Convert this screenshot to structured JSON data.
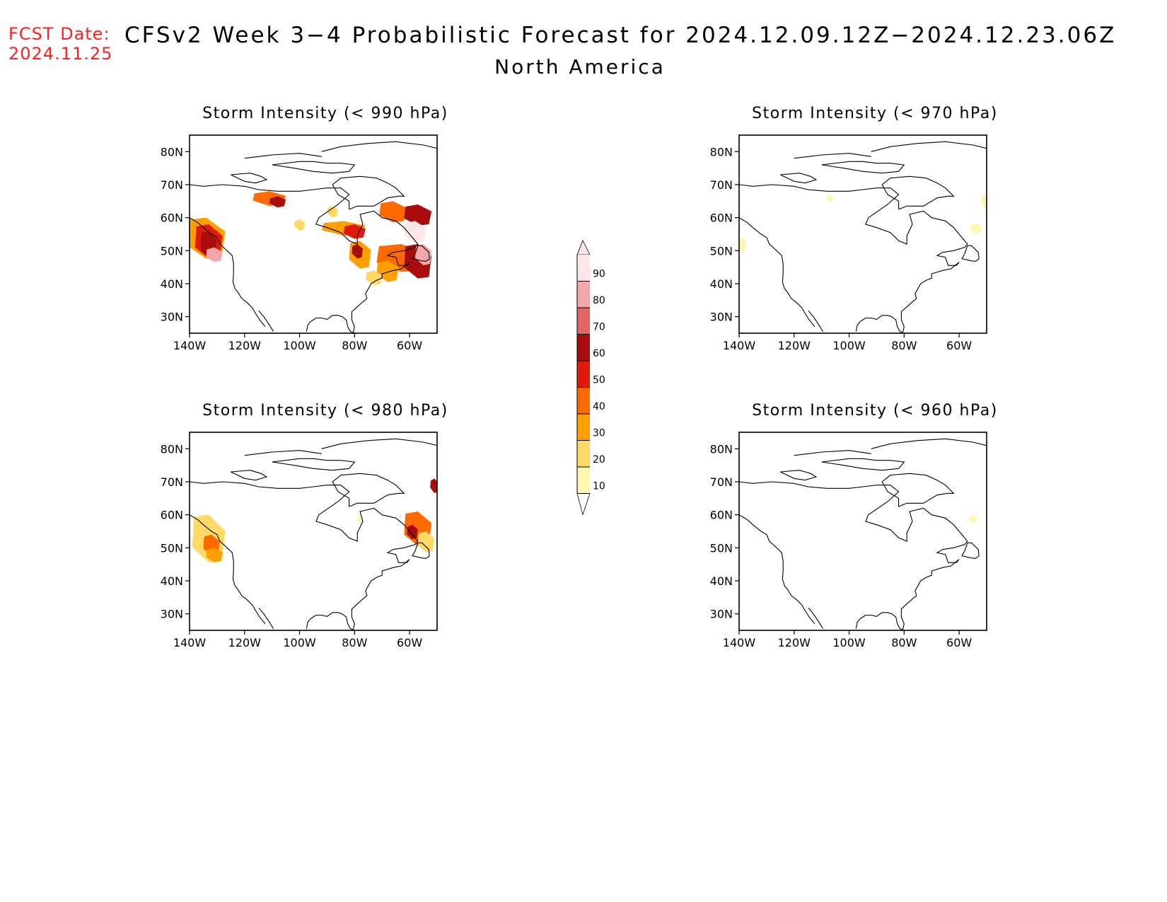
{
  "header": {
    "fcst_label": "FCST Date:",
    "fcst_date": "2024.11.25",
    "title": "CFSv2 Week 3−4 Probabilistic Forecast for 2024.12.09.12Z−2024.12.23.06Z",
    "subtitle": "North America"
  },
  "axes": {
    "lat_ticks": [
      "80N",
      "70N",
      "60N",
      "50N",
      "40N",
      "30N"
    ],
    "lon_ticks": [
      "140W",
      "120W",
      "100W",
      "80W",
      "60W"
    ]
  },
  "panels": [
    {
      "id": "p990",
      "title": "Storm Intensity (< 990 hPa)",
      "threshold_hpa": 990
    },
    {
      "id": "p970",
      "title": "Storm Intensity (< 970 hPa)",
      "threshold_hpa": 970
    },
    {
      "id": "p980",
      "title": "Storm Intensity (< 980 hPa)",
      "threshold_hpa": 980
    },
    {
      "id": "p960",
      "title": "Storm Intensity (< 960 hPa)",
      "threshold_hpa": 960
    }
  ],
  "legend": {
    "labels": [
      "90",
      "80",
      "70",
      "60",
      "50",
      "40",
      "30",
      "20",
      "10"
    ],
    "colors": [
      "#fde6e8",
      "#f4a6a8",
      "#e06666",
      "#a80c0c",
      "#e01a0a",
      "#ff6a00",
      "#ff9f00",
      "#ffd966",
      "#fff6b0"
    ]
  }
}
